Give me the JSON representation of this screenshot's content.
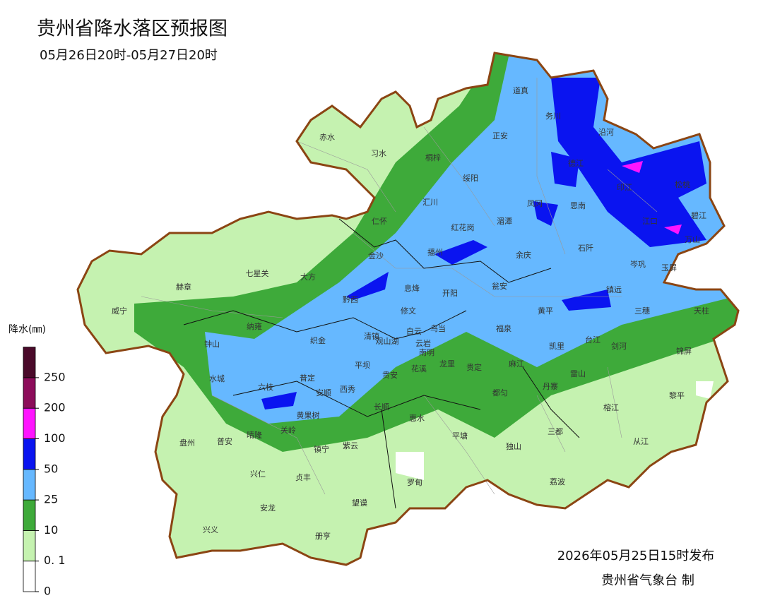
{
  "title": "贵州省降水落区预报图",
  "subtitle": "05月26日20时-05月27日20时",
  "legend": {
    "title": "降水(㎜)",
    "ticks": [
      0,
      {
        "value": 0.1,
        "label": "0. 1"
      },
      10,
      25,
      50,
      100,
      200,
      250
    ],
    "colors": [
      "#ffffff",
      "#c5f2b0",
      "#3eaa3a",
      "#66b8ff",
      "#0a14f0",
      "#ff14ff",
      "#8c0c5a",
      "#4a0a2a"
    ]
  },
  "places": [
    "道真",
    "务川",
    "沿河",
    "赤水",
    "习水",
    "桐梓",
    "正安",
    "德江",
    "印江",
    "松桃",
    "绥阳",
    "凤冈",
    "思南",
    "江口",
    "碧江",
    "万山",
    "汇川",
    "仁怀",
    "红花岗",
    "湄潭",
    "石阡",
    "播州",
    "余庆",
    "岑巩",
    "玉屏",
    "金沙",
    "七星关",
    "大方",
    "赫章",
    "息烽",
    "开阳",
    "瓮安",
    "镇远",
    "黄平",
    "三穗",
    "天柱",
    "威宁",
    "黔西",
    "修文",
    "乌当",
    "白云",
    "纳雍",
    "清镇",
    "织金",
    "福泉",
    "凯里",
    "台江",
    "剑河",
    "锦屏",
    "钟山",
    "观山湖",
    "云岩",
    "南明",
    "龙里",
    "贵定",
    "麻江",
    "平坝",
    "花溪",
    "贵安",
    "普定",
    "西秀",
    "安顺",
    "雷山",
    "丹寨",
    "水城",
    "六枝",
    "都匀",
    "黎平",
    "榕江",
    "长顺",
    "惠水",
    "黄果树",
    "关岭",
    "晴隆",
    "三都",
    "平塘",
    "盘州",
    "普安",
    "独山",
    "从江",
    "镇宁",
    "紫云",
    "兴仁",
    "贞丰",
    "罗甸",
    "荔波",
    "望谟",
    "安龙",
    "兴义",
    "册亨"
  ],
  "issue_time": "2026年05月25日15时发布",
  "issuer": "贵州省气象台  制"
}
